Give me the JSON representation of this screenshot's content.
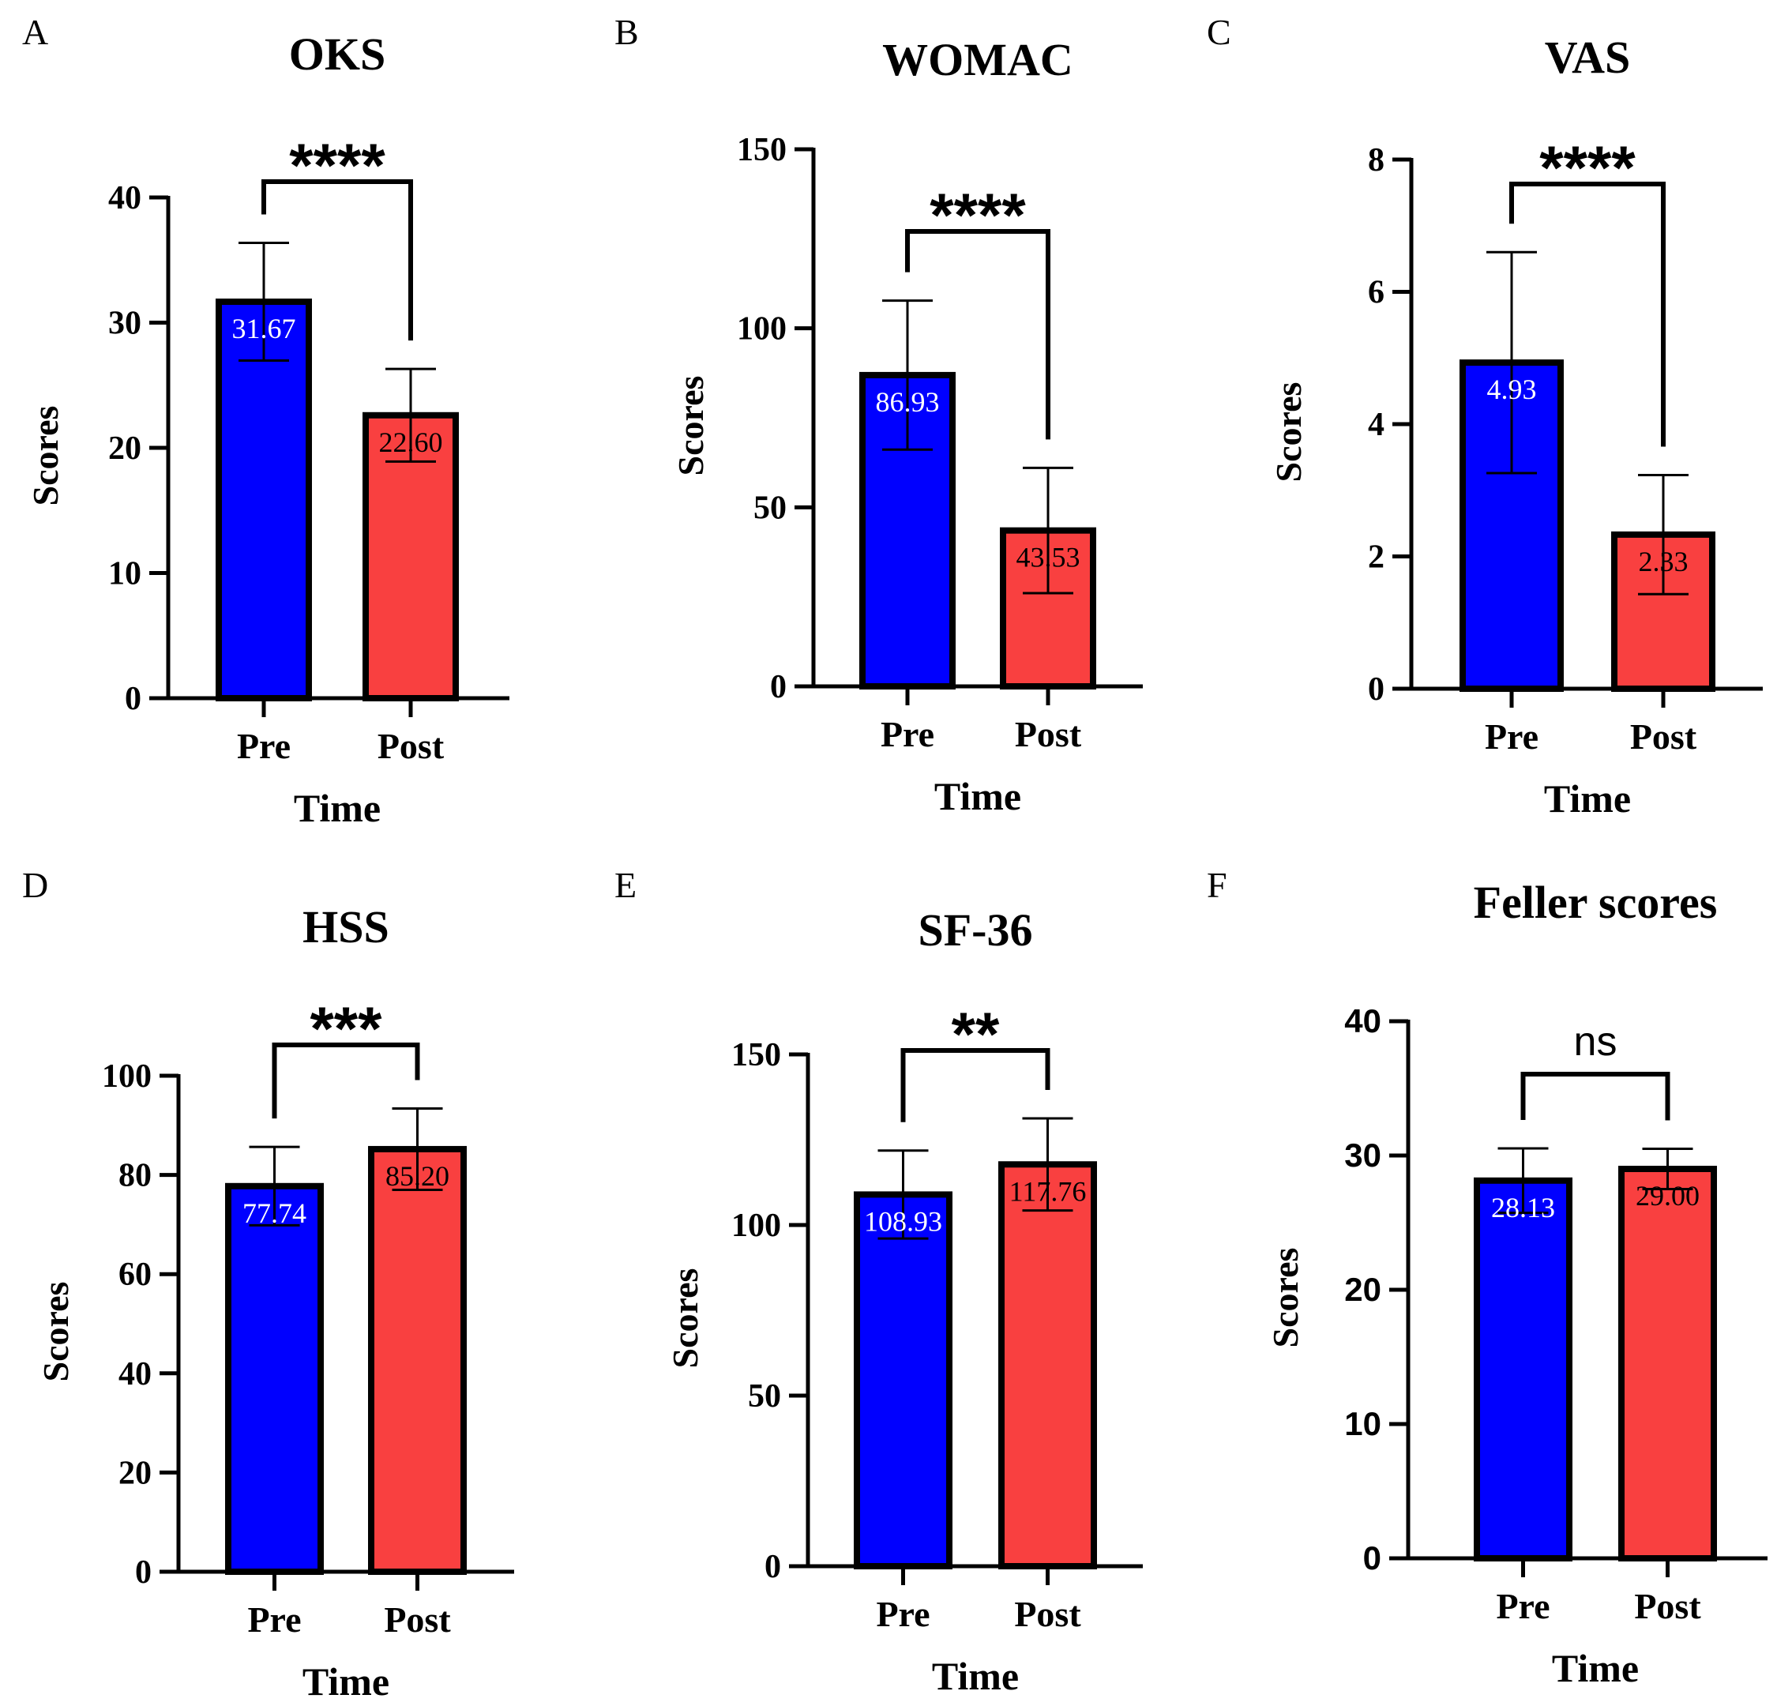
{
  "chart_data": [
    {
      "type": "bar",
      "panel_letter": "A",
      "title": "OKS",
      "xlabel": "Time",
      "ylabel": "Scores",
      "categories": [
        "Pre",
        "Post"
      ],
      "values": [
        31.67,
        22.6
      ],
      "value_labels": [
        "31.67",
        "22.60"
      ],
      "error": [
        4.7,
        3.7
      ],
      "ylim": [
        0,
        40
      ],
      "yticks": [
        0,
        10,
        20,
        30,
        40
      ],
      "ytick_labels": [
        "0",
        "10",
        "20",
        "30",
        "40"
      ],
      "significance": "****",
      "sig_style": "bold",
      "bar_colors": [
        "#0000ff",
        "#f94040"
      ],
      "value_label_colors": [
        "#ffffff",
        "#000000"
      ]
    },
    {
      "type": "bar",
      "panel_letter": "B",
      "title": "WOMAC",
      "xlabel": "Time",
      "ylabel": "Scores",
      "categories": [
        "Pre",
        "Post"
      ],
      "values": [
        86.93,
        43.53
      ],
      "value_labels": [
        "86.93",
        "43.53"
      ],
      "error": [
        20.8,
        17.5
      ],
      "ylim": [
        0,
        150
      ],
      "yticks": [
        0,
        50,
        100,
        150
      ],
      "ytick_labels": [
        "0",
        "50",
        "100",
        "150"
      ],
      "significance": "****",
      "sig_style": "bold",
      "bar_colors": [
        "#0000ff",
        "#f94040"
      ],
      "value_label_colors": [
        "#ffffff",
        "#000000"
      ]
    },
    {
      "type": "bar",
      "panel_letter": "C",
      "title": "VAS",
      "xlabel": "Time",
      "ylabel": "Scores",
      "categories": [
        "Pre",
        "Post"
      ],
      "values": [
        4.93,
        2.33
      ],
      "value_labels": [
        "4.93",
        "2.33"
      ],
      "error": [
        1.67,
        0.9
      ],
      "ylim": [
        0,
        8
      ],
      "yticks": [
        0,
        2,
        4,
        6,
        8
      ],
      "ytick_labels": [
        "0",
        "2",
        "4",
        "6",
        "8"
      ],
      "significance": "****",
      "sig_style": "bold",
      "bar_colors": [
        "#0000ff",
        "#f94040"
      ],
      "value_label_colors": [
        "#ffffff",
        "#000000"
      ]
    },
    {
      "type": "bar",
      "panel_letter": "D",
      "title": "HSS",
      "xlabel": "Time",
      "ylabel": "Scores",
      "categories": [
        "Pre",
        "Post"
      ],
      "values": [
        77.74,
        85.2
      ],
      "value_labels": [
        "77.74",
        "85.20"
      ],
      "error": [
        7.9,
        8.2
      ],
      "ylim": [
        0,
        100
      ],
      "yticks": [
        0,
        20,
        40,
        60,
        80,
        100
      ],
      "ytick_labels": [
        "0",
        "20",
        "40",
        "60",
        "80",
        "100"
      ],
      "significance": "***",
      "sig_style": "bold",
      "bar_colors": [
        "#0000ff",
        "#f94040"
      ],
      "value_label_colors": [
        "#ffffff",
        "#000000"
      ]
    },
    {
      "type": "bar",
      "panel_letter": "E",
      "title": "SF-36",
      "xlabel": "Time",
      "ylabel": "Scores",
      "categories": [
        "Pre",
        "Post"
      ],
      "values": [
        108.93,
        117.76
      ],
      "value_labels": [
        "108.93",
        "117.76"
      ],
      "error": [
        12.9,
        13.5
      ],
      "ylim": [
        0,
        150
      ],
      "yticks": [
        0,
        50,
        100,
        150
      ],
      "ytick_labels": [
        "0",
        "50",
        "100",
        "150"
      ],
      "significance": "**",
      "sig_style": "bold",
      "bar_colors": [
        "#0000ff",
        "#f94040"
      ],
      "value_label_colors": [
        "#ffffff",
        "#000000"
      ]
    },
    {
      "type": "bar",
      "panel_letter": "F",
      "title": "Feller scores",
      "xlabel": "Time",
      "ylabel": "Scores",
      "categories": [
        "Pre",
        "Post"
      ],
      "values": [
        28.13,
        29.0
      ],
      "value_labels": [
        "28.13",
        "29.00"
      ],
      "error": [
        2.4,
        1.5
      ],
      "ylim": [
        0,
        40
      ],
      "yticks": [
        0,
        10,
        20,
        30,
        40
      ],
      "ytick_labels": [
        "0",
        "10",
        "20",
        "30",
        "40"
      ],
      "significance": "ns",
      "sig_style": "sans",
      "bar_colors": [
        "#0000ff",
        "#f94040"
      ],
      "value_label_colors": [
        "#ffffff",
        "#000000"
      ]
    }
  ]
}
